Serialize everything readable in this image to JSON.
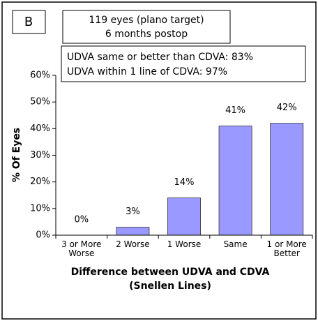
{
  "chart_data": {
    "type": "bar",
    "panel_label": "B",
    "title": "119 eyes (plano target)",
    "subtitle": "6 months postop",
    "annotations": [
      "UDVA same or better than CDVA: 83%",
      "UDVA within 1 line of CDVA: 97%"
    ],
    "y_label": "% Of Eyes",
    "x_label": [
      "Difference between  UDVA and CDVA",
      "(Snellen Lines)"
    ],
    "categories": [
      "3 or More Worse",
      "2 Worse",
      "1 Worse",
      "Same",
      "1 or More Better"
    ],
    "values": [
      0,
      3,
      14,
      41,
      42
    ],
    "value_labels": [
      "0%",
      "3%",
      "14%",
      "41%",
      "42%"
    ],
    "color": "#9999ff",
    "ylim": [
      0,
      60
    ],
    "yticks": [
      {
        "value": 0,
        "label": "0%"
      },
      {
        "value": 10,
        "label": "10%"
      },
      {
        "value": 20,
        "label": "20%"
      },
      {
        "value": 30,
        "label": "30%"
      },
      {
        "value": 40,
        "label": "40%"
      },
      {
        "value": 50,
        "label": "50%"
      },
      {
        "value": 60,
        "label": "60%"
      }
    ],
    "grid": false
  }
}
